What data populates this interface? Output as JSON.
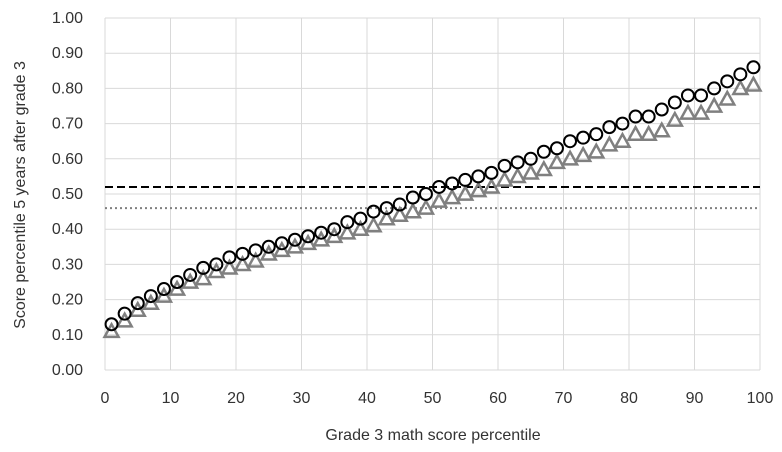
{
  "chart_data": {
    "type": "scatter",
    "title": "",
    "xlabel": "Grade 3 math score percentile",
    "ylabel": "Score percentile 5 years after grade 3",
    "xlim": [
      0,
      100
    ],
    "ylim": [
      0,
      1
    ],
    "xticks": [
      "0",
      "10",
      "20",
      "30",
      "40",
      "50",
      "60",
      "70",
      "80",
      "90",
      "100"
    ],
    "yticks": [
      "0.00",
      "0.10",
      "0.20",
      "0.30",
      "0.40",
      "0.50",
      "0.60",
      "0.70",
      "0.80",
      "0.90",
      "1.00"
    ],
    "grid": "both",
    "legend": "none",
    "series": [
      {
        "marker": "circle",
        "color": "#000000",
        "x": [
          1,
          3,
          5,
          7,
          9,
          11,
          13,
          15,
          17,
          19,
          21,
          23,
          25,
          27,
          29,
          31,
          33,
          35,
          37,
          39,
          41,
          43,
          45,
          47,
          49,
          51,
          53,
          55,
          57,
          59,
          61,
          63,
          65,
          67,
          69,
          71,
          73,
          75,
          77,
          79,
          81,
          83,
          85,
          87,
          89,
          91,
          93,
          95,
          97,
          99
        ],
        "y": [
          0.13,
          0.16,
          0.19,
          0.21,
          0.23,
          0.25,
          0.27,
          0.29,
          0.3,
          0.32,
          0.33,
          0.34,
          0.35,
          0.36,
          0.37,
          0.38,
          0.39,
          0.4,
          0.42,
          0.43,
          0.45,
          0.46,
          0.47,
          0.49,
          0.5,
          0.52,
          0.53,
          0.54,
          0.55,
          0.56,
          0.58,
          0.59,
          0.6,
          0.62,
          0.63,
          0.65,
          0.66,
          0.67,
          0.69,
          0.7,
          0.72,
          0.72,
          0.74,
          0.76,
          0.78,
          0.78,
          0.8,
          0.82,
          0.84,
          0.86
        ]
      },
      {
        "marker": "triangle",
        "color": "#808080",
        "x": [
          1,
          3,
          5,
          7,
          9,
          11,
          13,
          15,
          17,
          19,
          21,
          23,
          25,
          27,
          29,
          31,
          33,
          35,
          37,
          39,
          41,
          43,
          45,
          47,
          49,
          51,
          53,
          55,
          57,
          59,
          61,
          63,
          65,
          67,
          69,
          71,
          73,
          75,
          77,
          79,
          81,
          83,
          85,
          87,
          89,
          91,
          93,
          95,
          97,
          99
        ],
        "y": [
          0.11,
          0.14,
          0.17,
          0.19,
          0.21,
          0.23,
          0.25,
          0.26,
          0.28,
          0.29,
          0.3,
          0.31,
          0.33,
          0.34,
          0.35,
          0.36,
          0.37,
          0.38,
          0.39,
          0.4,
          0.41,
          0.43,
          0.44,
          0.45,
          0.46,
          0.48,
          0.49,
          0.5,
          0.51,
          0.52,
          0.54,
          0.55,
          0.56,
          0.57,
          0.59,
          0.6,
          0.61,
          0.62,
          0.64,
          0.65,
          0.67,
          0.67,
          0.68,
          0.71,
          0.73,
          0.73,
          0.75,
          0.77,
          0.8,
          0.81
        ]
      }
    ],
    "reference_lines": [
      {
        "y": 0.52,
        "style": "dashed",
        "color": "#000000"
      },
      {
        "y": 0.46,
        "style": "dotted",
        "color": "#808080"
      }
    ]
  }
}
